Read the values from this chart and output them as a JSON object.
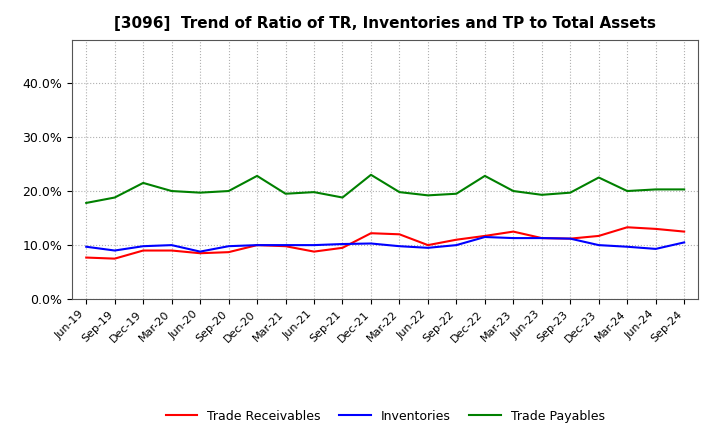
{
  "title": "[3096]  Trend of Ratio of TR, Inventories and TP to Total Assets",
  "x_labels": [
    "Jun-19",
    "Sep-19",
    "Dec-19",
    "Mar-20",
    "Jun-20",
    "Sep-20",
    "Dec-20",
    "Mar-21",
    "Jun-21",
    "Sep-21",
    "Dec-21",
    "Mar-22",
    "Jun-22",
    "Sep-22",
    "Dec-22",
    "Mar-23",
    "Jun-23",
    "Sep-23",
    "Dec-23",
    "Mar-24",
    "Jun-24",
    "Sep-24"
  ],
  "trade_receivables": [
    0.077,
    0.075,
    0.09,
    0.09,
    0.085,
    0.087,
    0.1,
    0.098,
    0.088,
    0.095,
    0.122,
    0.12,
    0.1,
    0.11,
    0.117,
    0.125,
    0.113,
    0.112,
    0.117,
    0.133,
    0.13,
    0.125
  ],
  "inventories": [
    0.097,
    0.09,
    0.098,
    0.1,
    0.088,
    0.098,
    0.1,
    0.1,
    0.1,
    0.102,
    0.103,
    0.098,
    0.095,
    0.1,
    0.115,
    0.113,
    0.113,
    0.112,
    0.1,
    0.097,
    0.093,
    0.105
  ],
  "trade_payables": [
    0.178,
    0.188,
    0.215,
    0.2,
    0.197,
    0.2,
    0.228,
    0.195,
    0.198,
    0.188,
    0.23,
    0.198,
    0.192,
    0.195,
    0.228,
    0.2,
    0.193,
    0.197,
    0.225,
    0.2,
    0.203,
    0.203
  ],
  "tr_color": "#ff0000",
  "inv_color": "#0000ff",
  "tp_color": "#008000",
  "ylim": [
    0.0,
    0.48
  ],
  "yticks": [
    0.0,
    0.1,
    0.2,
    0.3,
    0.4
  ],
  "legend_labels": [
    "Trade Receivables",
    "Inventories",
    "Trade Payables"
  ],
  "background_color": "#ffffff",
  "grid_color": "#b0b0b0"
}
